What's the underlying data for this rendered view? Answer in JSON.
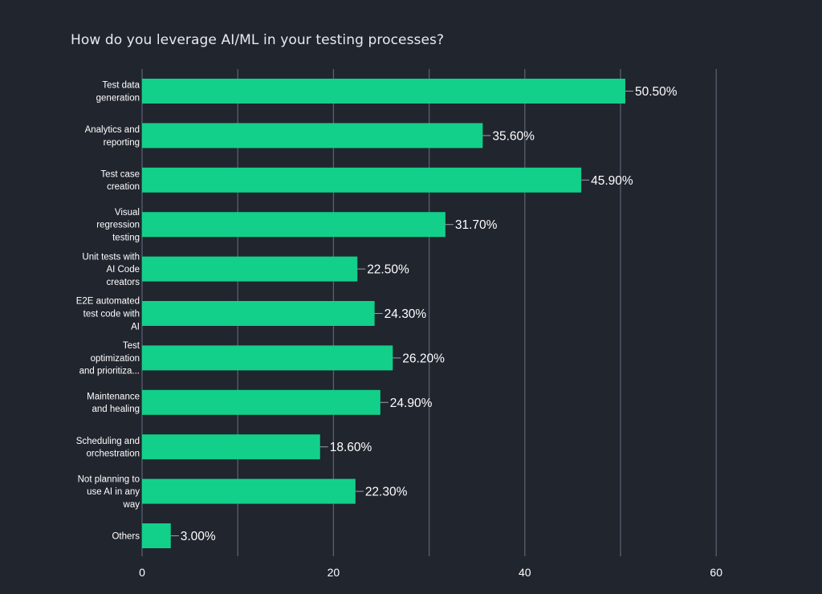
{
  "colors": {
    "background": "#21252e",
    "bar": "#12d08a",
    "grid": "#5a5f6e",
    "text": "#ffffff"
  },
  "chart_data": {
    "type": "bar",
    "orientation": "horizontal",
    "title": "How do you leverage AI/ML in your testing processes?",
    "xlabel": "",
    "ylabel": "",
    "xlim": [
      0,
      60
    ],
    "x_ticks": [
      0,
      20,
      40,
      60
    ],
    "grid": "vertical",
    "legend": "none",
    "categories": [
      [
        "Test data",
        "generation"
      ],
      [
        "Analytics and",
        "reporting"
      ],
      [
        "Test case",
        "creation"
      ],
      [
        "Visual",
        "regression",
        "testing"
      ],
      [
        "Unit tests with",
        "AI Code",
        "creators"
      ],
      [
        "E2E automated",
        "test code with",
        "AI"
      ],
      [
        "Test",
        "optimization",
        "and prioritiza..."
      ],
      [
        "Maintenance",
        "and healing"
      ],
      [
        "Scheduling and",
        "orchestration"
      ],
      [
        "Not planning to",
        "use AI in any",
        "way"
      ],
      [
        "Others"
      ]
    ],
    "values": [
      50.5,
      35.6,
      45.9,
      31.7,
      22.5,
      24.3,
      26.2,
      24.9,
      18.6,
      22.3,
      3.0
    ],
    "data_labels": [
      "50.50%",
      "35.60%",
      "45.90%",
      "31.70%",
      "22.50%",
      "24.30%",
      "26.20%",
      "24.90%",
      "18.60%",
      "22.30%",
      "3.00%"
    ]
  }
}
